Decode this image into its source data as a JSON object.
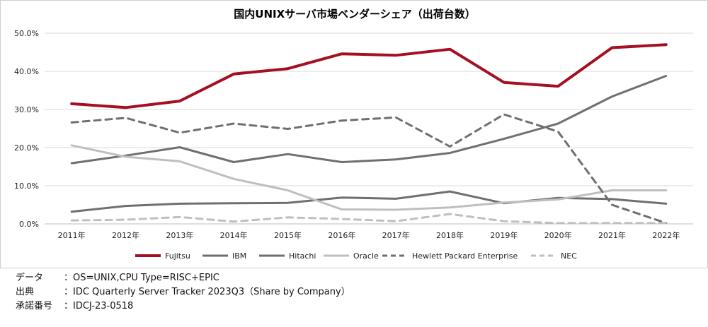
{
  "chart_data": {
    "type": "line",
    "title": "国内UNIXサーバ市場ベンダーシェア（出荷台数）",
    "categories": [
      "2011年",
      "2012年",
      "2013年",
      "2014年",
      "2015年",
      "2016年",
      "2017年",
      "2018年",
      "2019年",
      "2020年",
      "2021年",
      "2022年"
    ],
    "ylim": [
      0,
      50
    ],
    "yticks": [
      "0.0%",
      "10.0%",
      "20.0%",
      "30.0%",
      "40.0%",
      "50.0%"
    ],
    "grid": true,
    "legend_position": "bottom",
    "series": [
      {
        "name": "Fujitsu",
        "color": "#a50f22",
        "dash": "solid",
        "width": 4,
        "values": [
          31.5,
          30.5,
          32.2,
          39.3,
          40.7,
          44.6,
          44.2,
          45.8,
          37.1,
          36.1,
          46.2,
          47.0
        ]
      },
      {
        "name": "IBM",
        "color": "#6f6f6f",
        "dash": "solid",
        "width": 3,
        "values": [
          15.9,
          17.9,
          20.1,
          16.2,
          18.3,
          16.2,
          16.9,
          18.6,
          22.3,
          26.3,
          33.4,
          38.8
        ]
      },
      {
        "name": "Hitachi",
        "color": "#6f6f6f",
        "dash": "solid",
        "width": 3,
        "values": [
          3.2,
          4.7,
          5.3,
          5.4,
          5.5,
          6.9,
          6.6,
          8.5,
          5.4,
          6.8,
          6.5,
          5.3
        ]
      },
      {
        "name": "Oracle",
        "color": "#bfbfbf",
        "dash": "solid",
        "width": 3,
        "values": [
          20.6,
          17.6,
          16.4,
          11.8,
          8.8,
          3.8,
          3.7,
          4.3,
          5.6,
          6.4,
          8.8,
          8.8
        ]
      },
      {
        "name": "Hewlett Packard Enterprise",
        "color": "#6f6f6f",
        "dash": "dashed",
        "width": 3,
        "values": [
          26.6,
          27.8,
          23.9,
          26.3,
          24.9,
          27.1,
          27.9,
          20.3,
          28.7,
          24.2,
          5.0,
          0.2
        ]
      },
      {
        "name": "NEC",
        "color": "#bfbfbf",
        "dash": "dashed",
        "width": 3,
        "values": [
          0.9,
          1.1,
          1.8,
          0.6,
          1.7,
          1.3,
          0.7,
          2.6,
          0.7,
          0.2,
          0.2,
          0.2
        ]
      }
    ]
  },
  "footer": [
    {
      "key": "データ",
      "value": "：OS=UNIX,CPU Type=RISC+EPIC"
    },
    {
      "key": "出典",
      "value": "：IDC Quarterly Server Tracker 2023Q3（Share by Company）"
    },
    {
      "key": "承諾番号",
      "value": "：IDCJ-23-0518"
    }
  ]
}
